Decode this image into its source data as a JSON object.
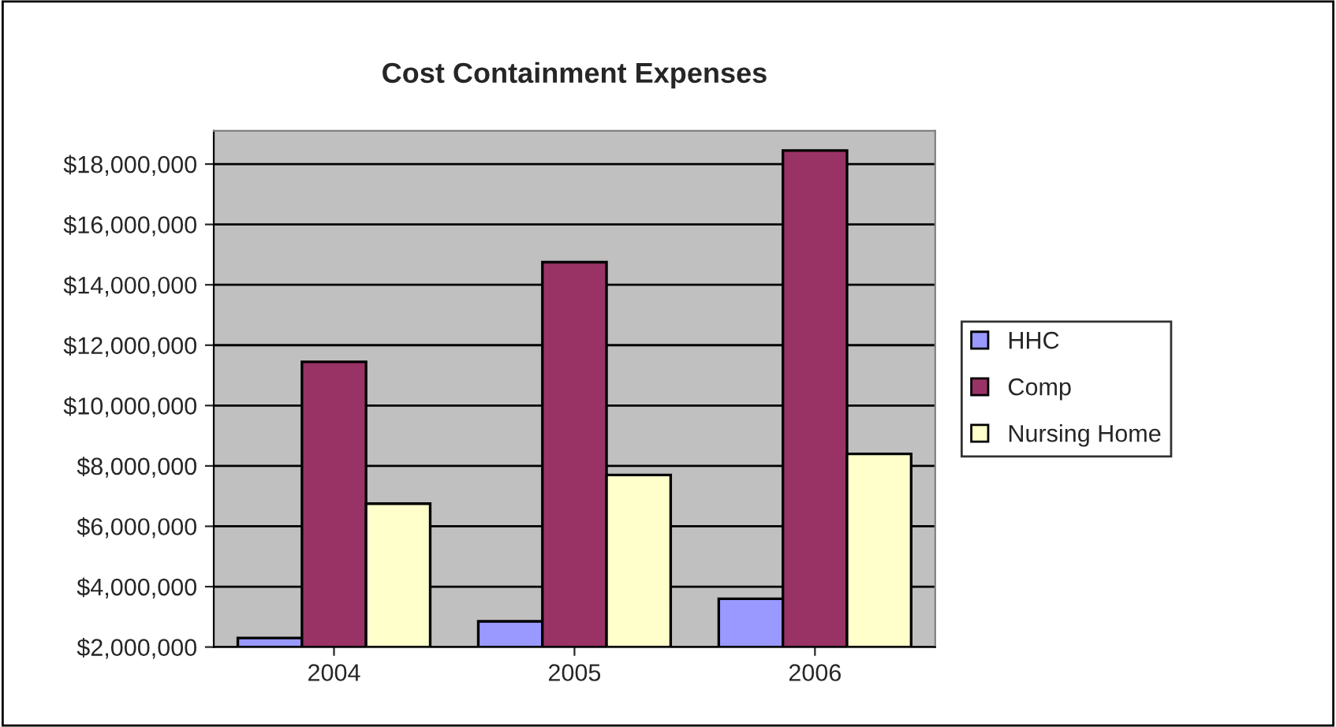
{
  "chart_data": {
    "type": "bar",
    "title": "Cost Containment Expenses",
    "categories": [
      "2004",
      "2005",
      "2006"
    ],
    "series": [
      {
        "name": "HHC",
        "color": "#9999ff",
        "values": [
          2300000,
          2850000,
          3600000
        ]
      },
      {
        "name": "Comp",
        "color": "#993366",
        "values": [
          11450000,
          14750000,
          18450000
        ]
      },
      {
        "name": "Nursing Home",
        "color": "#ffffcc",
        "values": [
          6750000,
          7700000,
          8400000
        ]
      }
    ],
    "ylim": [
      2000000,
      19100000
    ],
    "yticks": [
      {
        "value": 2000000,
        "label": "$2,000,000"
      },
      {
        "value": 4000000,
        "label": "$4,000,000"
      },
      {
        "value": 6000000,
        "label": "$6,000,000"
      },
      {
        "value": 8000000,
        "label": "$8,000,000"
      },
      {
        "value": 10000000,
        "label": "$10,000,000"
      },
      {
        "value": 12000000,
        "label": "$12,000,000"
      },
      {
        "value": 14000000,
        "label": "$14,000,000"
      },
      {
        "value": 16000000,
        "label": "$16,000,000"
      },
      {
        "value": 18000000,
        "label": "$18,000,000"
      }
    ],
    "grid": "y",
    "legend": "right"
  }
}
